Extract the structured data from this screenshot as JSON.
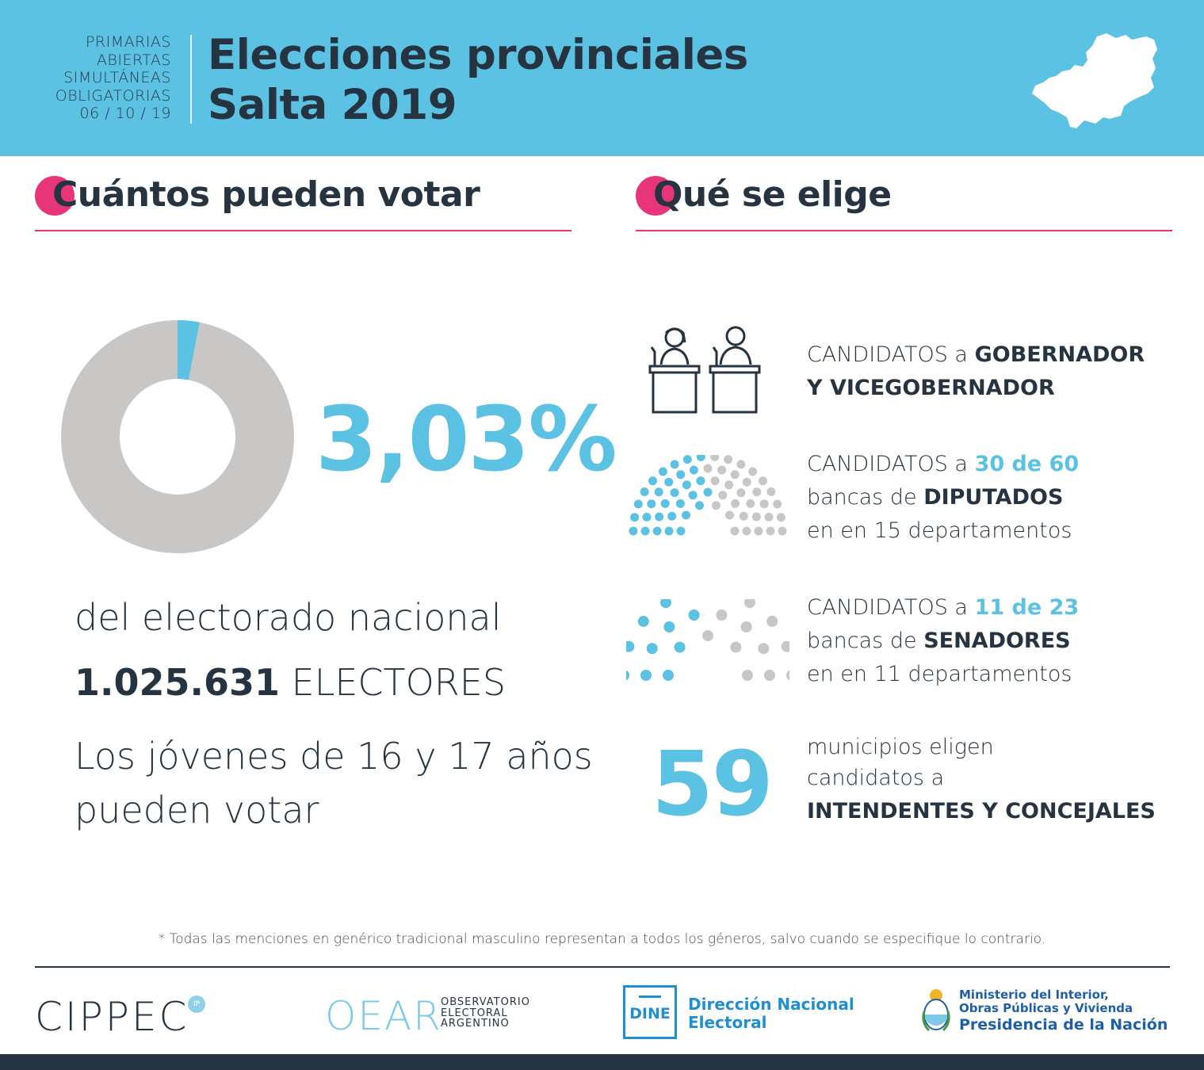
{
  "header": {
    "paso_lines": [
      "PRIMARIAS",
      "ABIERTAS",
      "SIMULTÁNEAS",
      "OBLIGATORIAS",
      "06 / 10 / 19"
    ],
    "title_line1": "Elecciones provinciales",
    "title_line2": "Salta 2019",
    "map_icon": "salta-province-map-icon"
  },
  "left": {
    "heading": "Cuántos pueden votar",
    "donut": {
      "share_percent": 3.03,
      "highlight_color": "#5bc2e3",
      "rest_color": "#c9c6c6"
    },
    "percent_label": "3,03%",
    "line1": "del electorado nacional",
    "electores_number": "1.025.631",
    "electores_word": "ELECTORES",
    "line3a": "Los jóvenes de 16 y 17 años",
    "line3b": "pueden votar"
  },
  "right": {
    "heading": "Qué se elige",
    "governor": {
      "icon": "podium-candidates-icon",
      "prefix": "CANDIDATOS a",
      "bold1": "GOBERNADOR",
      "bold2": "Y VICEGOBERNADOR"
    },
    "diputados": {
      "icon": "parliament-diputados-icon",
      "prefix": "CANDIDATOS a",
      "highlight": "30 de 60",
      "mid": "bancas de",
      "bold": "DIPUTADOS",
      "line3": "en en 15 departamentos",
      "elected": 30,
      "total": 60
    },
    "senadores": {
      "icon": "parliament-senadores-icon",
      "prefix": "CANDIDATOS a",
      "highlight": "11 de 23",
      "mid": "bancas de",
      "bold": "SENADORES",
      "line3": "en en 11 departamentos",
      "elected": 11,
      "total": 23
    },
    "municipios": {
      "number": "59",
      "line1": "municipios eligen",
      "line2": "candidatos a",
      "bold": "INTENDENTES Y CONCEJALES"
    }
  },
  "footnote": "* Todas las menciones en genérico tradicional masculino representan a todos los géneros, salvo cuando se especifique lo contrario.",
  "logos": {
    "cippec": "CIPPEC",
    "cippec_badge": "IP",
    "oear": "OEAR",
    "oear_sub": [
      "OBSERVATORIO",
      "ELECTORAL",
      "ARGENTINO"
    ],
    "dine_box": "DINE",
    "dine_text": [
      "Dirección Nacional",
      "Electoral"
    ],
    "ministerio": [
      "Ministerio del Interior,",
      "Obras Públicas y Vivienda"
    ],
    "presidencia": "Presidencia de la Nación"
  },
  "colors": {
    "accent": "#5bc2e3",
    "pink": "#e8357a",
    "dark": "#263340",
    "grey": "#c9c6c6"
  }
}
